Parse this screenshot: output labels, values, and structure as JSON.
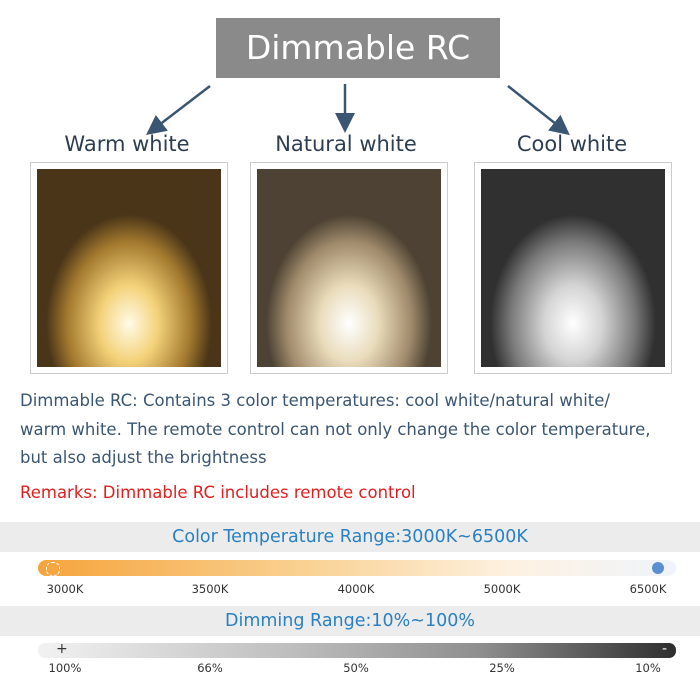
{
  "header": {
    "title": "Dimmable RC"
  },
  "panels": [
    {
      "label": "Warm white"
    },
    {
      "label": "Natural white"
    },
    {
      "label": "Cool white"
    }
  ],
  "description": {
    "lines": [
      "Dimmable RC: Contains 3 color temperatures: cool white/natural white/",
      "warm white. The remote control can not only change the color temperature,",
      "but also adjust the brightness"
    ]
  },
  "remarks": "Remarks: Dimmable RC includes remote control",
  "color_temperature_range": {
    "title": "Color Temperature Range:3000K~6500K",
    "labels": [
      "3000K",
      "3500K",
      "4000K",
      "5000K",
      "6500K"
    ]
  },
  "dimming_range": {
    "title": "Dimming Range:10%~100%",
    "brightest_symbol": "+",
    "dimmest_symbol": "-",
    "labels": [
      "100%",
      "66%",
      "50%",
      "25%",
      "10%"
    ]
  }
}
